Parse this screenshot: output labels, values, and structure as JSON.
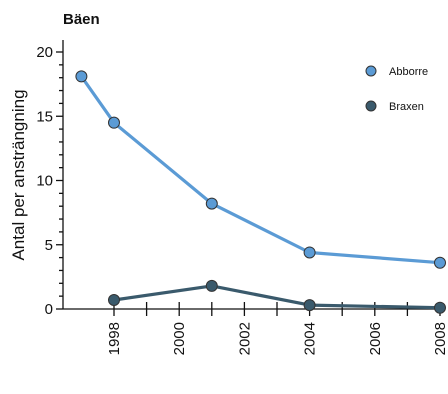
{
  "chart_data": {
    "type": "line",
    "title": "Bäen",
    "xlabel": "",
    "ylabel": "Antal per ansträngning",
    "xlim": [
      1996.8,
      2008.2
    ],
    "ylim": [
      0,
      21
    ],
    "x_ticks": [
      1998,
      2000,
      2002,
      2004,
      2006,
      2008
    ],
    "x_tick_labels": [
      "1998",
      "",
      "2000",
      "",
      "2002",
      "",
      "2004",
      "",
      "2006",
      "",
      "2008"
    ],
    "x_tick_values": [
      1998,
      1999,
      2000,
      2001,
      2002,
      2003,
      2004,
      2005,
      2006,
      2007,
      2008
    ],
    "y_ticks": [
      0,
      5,
      10,
      15,
      20
    ],
    "y_tick_labels": [
      "0",
      "5",
      "10",
      "15",
      "20"
    ],
    "grid": false,
    "legend_position": "top-right",
    "series": [
      {
        "name": "Abborre",
        "color": "#5b9bd5",
        "x": [
          1997,
          1998,
          2001,
          2004,
          2008
        ],
        "y": [
          18.1,
          14.5,
          8.2,
          4.4,
          3.6
        ]
      },
      {
        "name": "Braxen",
        "color": "#3a5a6c",
        "x": [
          1998,
          2001,
          2004,
          2008
        ],
        "y": [
          0.7,
          1.8,
          0.3,
          0.1
        ]
      }
    ]
  }
}
